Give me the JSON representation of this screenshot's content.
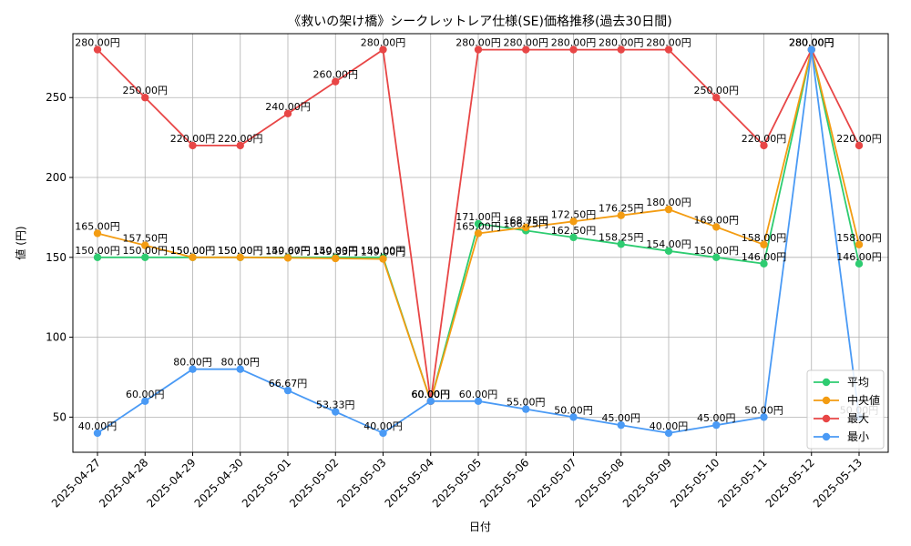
{
  "chart_data": {
    "type": "line",
    "title": "《救いの架け橋》シークレットレア仕様(SE)価格推移(過去30日間)",
    "xlabel": "日付",
    "ylabel": "値 (円)",
    "ylim": [
      28,
      290
    ],
    "yticks": [
      50,
      100,
      150,
      200,
      250
    ],
    "grid": true,
    "legend_position": "bottom-right",
    "value_suffix": "円",
    "categories": [
      "2025-04-27",
      "2025-04-28",
      "2025-04-29",
      "2025-04-30",
      "2025-05-01",
      "2025-05-02",
      "2025-05-03",
      "2025-05-04",
      "2025-05-05",
      "2025-05-06",
      "2025-05-07",
      "2025-05-08",
      "2025-05-09",
      "2025-05-10",
      "2025-05-11",
      "2025-05-12",
      "2025-05-13"
    ],
    "series": [
      {
        "name": "平均",
        "color": "#2ecc71",
        "values": [
          150,
          150,
          150,
          150,
          150,
          150,
          150,
          60,
          171,
          166.75,
          162.5,
          158.25,
          154,
          150,
          146,
          280,
          146
        ]
      },
      {
        "name": "中央値",
        "color": "#f39c12",
        "values": [
          165,
          157.5,
          150,
          150,
          149.67,
          149.33,
          149,
          60,
          165,
          168.75,
          172.5,
          176.25,
          180,
          169,
          158,
          280,
          158
        ]
      },
      {
        "name": "最大",
        "color": "#e84646",
        "values": [
          280,
          250,
          220,
          220,
          240,
          260,
          280,
          60,
          280,
          280,
          280,
          280,
          280,
          250,
          220,
          280,
          220
        ]
      },
      {
        "name": "最小",
        "color": "#4a9af5",
        "values": [
          40,
          60,
          80,
          80,
          66.67,
          53.33,
          40,
          60,
          60,
          55,
          50,
          45,
          40,
          45,
          50,
          280,
          50
        ]
      }
    ]
  }
}
